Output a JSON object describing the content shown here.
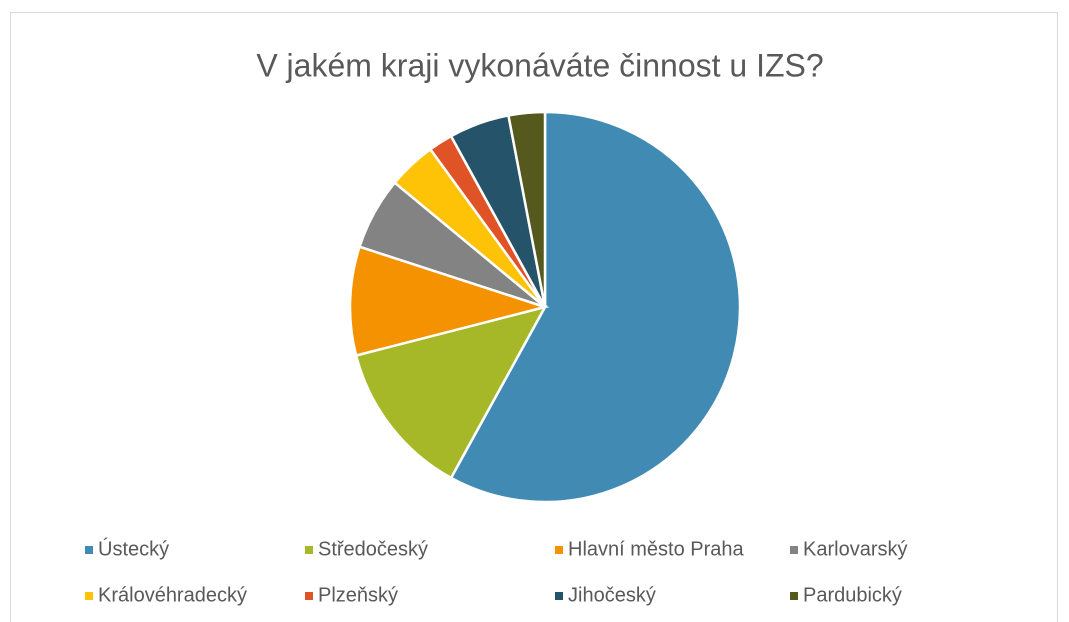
{
  "chart_data": {
    "type": "pie",
    "title": "V jakém kraji vykonáváte  činnost u IZS?",
    "categories": [
      "Ústecký",
      "Středočeský",
      "Hlavní město Praha",
      "Karlovarský",
      "Královéhradecký",
      "Plzeňský",
      "Jihočeský",
      "Pardubický"
    ],
    "values": [
      58,
      13,
      9,
      6,
      4,
      2,
      5,
      3
    ],
    "colors": [
      "#418ab3",
      "#a6b727",
      "#f59201",
      "#838383",
      "#fec306",
      "#df5327",
      "#255369",
      "#56591d"
    ],
    "legend": "bottom"
  }
}
